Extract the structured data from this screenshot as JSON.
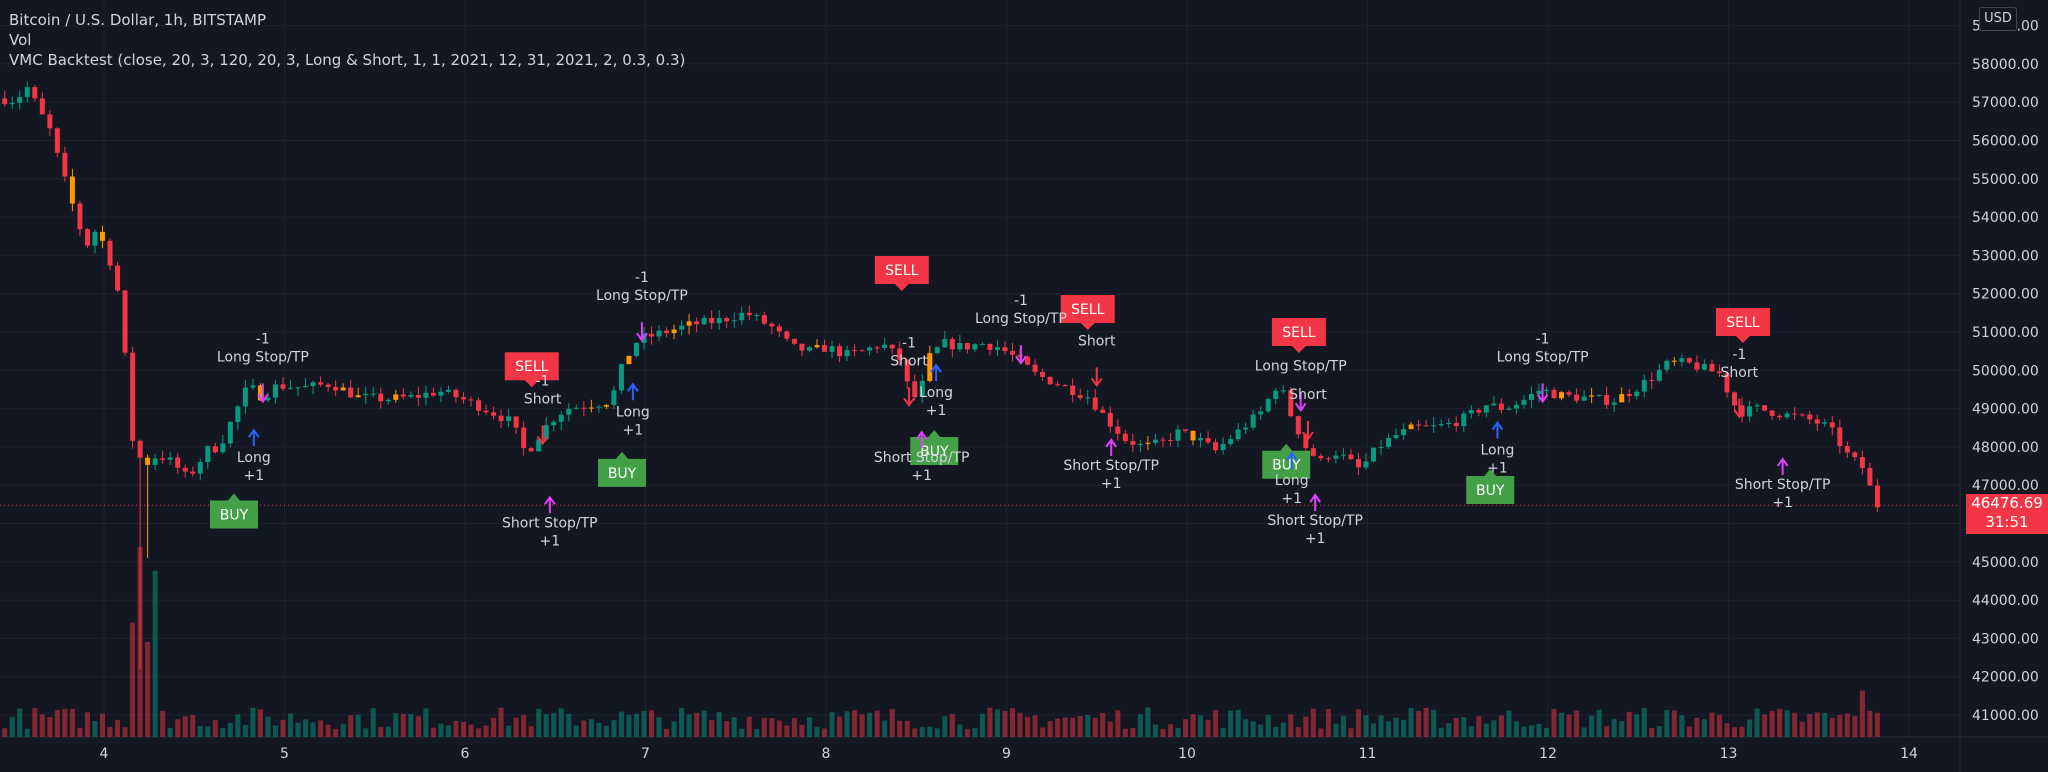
{
  "legend": {
    "symbol": "Bitcoin / U.S. Dollar, 1h, BITSTAMP",
    "vol": "Vol",
    "strategy": "VMC Backtest (close, 20, 3, 120, 20, 3, Long & Short, 1, 1, 2021, 12, 31, 2021, 2, 0.3, 0.3)"
  },
  "currency_button": "USD",
  "current_price": {
    "value": "46476.69",
    "countdown": "31:51",
    "price": 46476.69
  },
  "colors": {
    "background": "#131722",
    "up": "#089981",
    "down": "#f23645",
    "orange": "#ff9800",
    "buy": "#43a047",
    "sell": "#f23645",
    "magenta": "#e040fb",
    "blue": "#2962ff",
    "text": "#d1d4dc"
  },
  "chart_data": {
    "type": "candlestick",
    "ylim": [
      40600,
      59600
    ],
    "xlim": [
      3.45,
      14.4
    ],
    "y_ticks": [
      "41000.00",
      "42000.00",
      "43000.00",
      "44000.00",
      "45000.00",
      "46000.00",
      "47000.00",
      "48000.00",
      "49000.00",
      "50000.00",
      "51000.00",
      "52000.00",
      "53000.00",
      "54000.00",
      "55000.00",
      "56000.00",
      "57000.00",
      "58000.00",
      "59000.00"
    ],
    "x_ticks": [
      {
        "label": "4",
        "day": 4
      },
      {
        "label": "5",
        "day": 5
      },
      {
        "label": "6",
        "day": 6
      },
      {
        "label": "7",
        "day": 7
      },
      {
        "label": "8",
        "day": 8
      },
      {
        "label": "9",
        "day": 9
      },
      {
        "label": "10",
        "day": 10
      },
      {
        "label": "11",
        "day": 11
      },
      {
        "label": "12",
        "day": 12
      },
      {
        "label": "13",
        "day": 13
      },
      {
        "label": "14",
        "day": 14
      }
    ],
    "price_path": [
      [
        3.45,
        57100
      ],
      [
        3.55,
        57050
      ],
      [
        3.62,
        57400
      ],
      [
        3.68,
        56800
      ],
      [
        3.75,
        56200
      ],
      [
        3.8,
        55300
      ],
      [
        3.85,
        54600
      ],
      [
        3.9,
        53800
      ],
      [
        3.95,
        53300
      ],
      [
        4.0,
        53700
      ],
      [
        4.05,
        53200
      ],
      [
        4.1,
        52500
      ],
      [
        4.14,
        51500
      ],
      [
        4.18,
        49000
      ],
      [
        4.2,
        48200
      ],
      [
        4.26,
        47500
      ],
      [
        4.34,
        47800
      ],
      [
        4.42,
        47600
      ],
      [
        4.5,
        47200
      ],
      [
        4.56,
        47500
      ],
      [
        4.6,
        47900
      ],
      [
        4.68,
        48000
      ],
      [
        4.76,
        48800
      ],
      [
        4.84,
        49600
      ],
      [
        4.92,
        49300
      ],
      [
        5.0,
        49600
      ],
      [
        5.15,
        49550
      ],
      [
        5.3,
        49650
      ],
      [
        5.45,
        49300
      ],
      [
        5.6,
        49250
      ],
      [
        5.75,
        49300
      ],
      [
        5.9,
        49450
      ],
      [
        6.0,
        49300
      ],
      [
        6.15,
        49000
      ],
      [
        6.3,
        48650
      ],
      [
        6.38,
        47800
      ],
      [
        6.45,
        48300
      ],
      [
        6.52,
        48700
      ],
      [
        6.6,
        49000
      ],
      [
        6.72,
        49100
      ],
      [
        6.85,
        49200
      ],
      [
        6.92,
        50200
      ],
      [
        7.0,
        50800
      ],
      [
        7.15,
        51000
      ],
      [
        7.3,
        51200
      ],
      [
        7.45,
        51300
      ],
      [
        7.6,
        51500
      ],
      [
        7.75,
        51100
      ],
      [
        7.85,
        50600
      ],
      [
        7.95,
        50500
      ],
      [
        8.05,
        50600
      ],
      [
        8.15,
        50400
      ],
      [
        8.25,
        50500
      ],
      [
        8.35,
        50700
      ],
      [
        8.45,
        50300
      ],
      [
        8.5,
        49500
      ],
      [
        8.55,
        49200
      ],
      [
        8.62,
        50400
      ],
      [
        8.7,
        50700
      ],
      [
        8.8,
        50600
      ],
      [
        8.9,
        50700
      ],
      [
        9.0,
        50600
      ],
      [
        9.1,
        50300
      ],
      [
        9.2,
        49900
      ],
      [
        9.3,
        49700
      ],
      [
        9.4,
        49500
      ],
      [
        9.5,
        49300
      ],
      [
        9.6,
        48700
      ],
      [
        9.7,
        48200
      ],
      [
        9.8,
        48000
      ],
      [
        9.9,
        48100
      ],
      [
        10.0,
        48400
      ],
      [
        10.1,
        48200
      ],
      [
        10.2,
        47900
      ],
      [
        10.3,
        48300
      ],
      [
        10.45,
        48900
      ],
      [
        10.55,
        49700
      ],
      [
        10.62,
        48800
      ],
      [
        10.7,
        48000
      ],
      [
        10.78,
        47600
      ],
      [
        10.85,
        47900
      ],
      [
        10.92,
        47700
      ],
      [
        11.0,
        47400
      ],
      [
        11.1,
        48000
      ],
      [
        11.2,
        48300
      ],
      [
        11.3,
        48500
      ],
      [
        11.4,
        48500
      ],
      [
        11.5,
        48600
      ],
      [
        11.6,
        48800
      ],
      [
        11.7,
        49100
      ],
      [
        11.8,
        49000
      ],
      [
        11.9,
        49200
      ],
      [
        12.0,
        49500
      ],
      [
        12.1,
        49350
      ],
      [
        12.2,
        49300
      ],
      [
        12.3,
        49250
      ],
      [
        12.4,
        49200
      ],
      [
        12.5,
        49450
      ],
      [
        12.6,
        49750
      ],
      [
        12.7,
        50150
      ],
      [
        12.8,
        50200
      ],
      [
        12.9,
        50050
      ],
      [
        13.0,
        49900
      ],
      [
        13.05,
        49300
      ],
      [
        13.1,
        48900
      ],
      [
        13.2,
        49000
      ],
      [
        13.3,
        48900
      ],
      [
        13.4,
        48800
      ],
      [
        13.5,
        48700
      ],
      [
        13.6,
        48500
      ],
      [
        13.7,
        47800
      ],
      [
        13.8,
        47400
      ],
      [
        13.85,
        46476.69
      ]
    ],
    "markers": [
      {
        "type": "buy",
        "label": "BUY",
        "day": 4.72
      },
      {
        "type": "buy",
        "label": "BUY",
        "day": 6.87
      },
      {
        "type": "buy",
        "label": "BUY",
        "day": 8.6
      },
      {
        "type": "buy",
        "label": "BUY",
        "day": 10.55
      },
      {
        "type": "buy",
        "label": "BUY",
        "day": 11.68
      },
      {
        "type": "sell",
        "label": "SELL",
        "day": 6.37
      },
      {
        "type": "sell",
        "label": "SELL",
        "day": 8.42
      },
      {
        "type": "sell",
        "label": "SELL",
        "day": 9.45
      },
      {
        "type": "sell",
        "label": "SELL",
        "day": 10.62
      },
      {
        "type": "sell",
        "label": "SELL",
        "day": 13.08
      }
    ],
    "signals": [
      {
        "text": [
          "-1",
          "Long Stop/TP"
        ],
        "day": 4.88,
        "price": 50700
      },
      {
        "text": [
          "Long",
          "+1"
        ],
        "day": 4.83,
        "price": 47600
      },
      {
        "text": [
          "-1",
          "Short"
        ],
        "day": 6.43,
        "price": 49600
      },
      {
        "text": [
          "Short Stop/TP",
          "+1"
        ],
        "day": 6.47,
        "price": 45900
      },
      {
        "text": [
          "-1",
          "Long Stop/TP"
        ],
        "day": 6.98,
        "price": 52300
      },
      {
        "text": [
          "Long",
          "+1"
        ],
        "day": 6.93,
        "price": 48800
      },
      {
        "text": [
          "-1",
          "Short"
        ],
        "day": 8.46,
        "price": 50600
      },
      {
        "text": [
          "Long",
          "+1"
        ],
        "day": 8.61,
        "price": 49300
      },
      {
        "text": [
          "Short Stop/TP",
          "+1"
        ],
        "day": 8.53,
        "price": 47600
      },
      {
        "text": [
          "-1",
          "Long Stop/TP"
        ],
        "day": 9.08,
        "price": 51700
      },
      {
        "text": [
          "Short"
        ],
        "day": 9.5,
        "price": 50650
      },
      {
        "text": [
          "Short Stop/TP",
          "+1"
        ],
        "day": 9.58,
        "price": 47400
      },
      {
        "text": [
          "Long Stop/TP"
        ],
        "day": 10.63,
        "price": 50000
      },
      {
        "text": [
          "Short"
        ],
        "day": 10.67,
        "price": 49250
      },
      {
        "text": [
          "Short Stop/TP",
          "+1"
        ],
        "day": 10.71,
        "price": 45960
      },
      {
        "text": [
          "Long",
          "+1"
        ],
        "day": 10.58,
        "price": 47000
      },
      {
        "text": [
          "-1",
          "Long Stop/TP"
        ],
        "day": 11.97,
        "price": 50700
      },
      {
        "text": [
          "Long",
          "+1"
        ],
        "day": 11.72,
        "price": 47800
      },
      {
        "text": [
          "-1",
          "Short"
        ],
        "day": 13.06,
        "price": 50300
      },
      {
        "text": [
          "Short Stop/TP",
          "+1"
        ],
        "day": 13.3,
        "price": 46900
      }
    ]
  }
}
